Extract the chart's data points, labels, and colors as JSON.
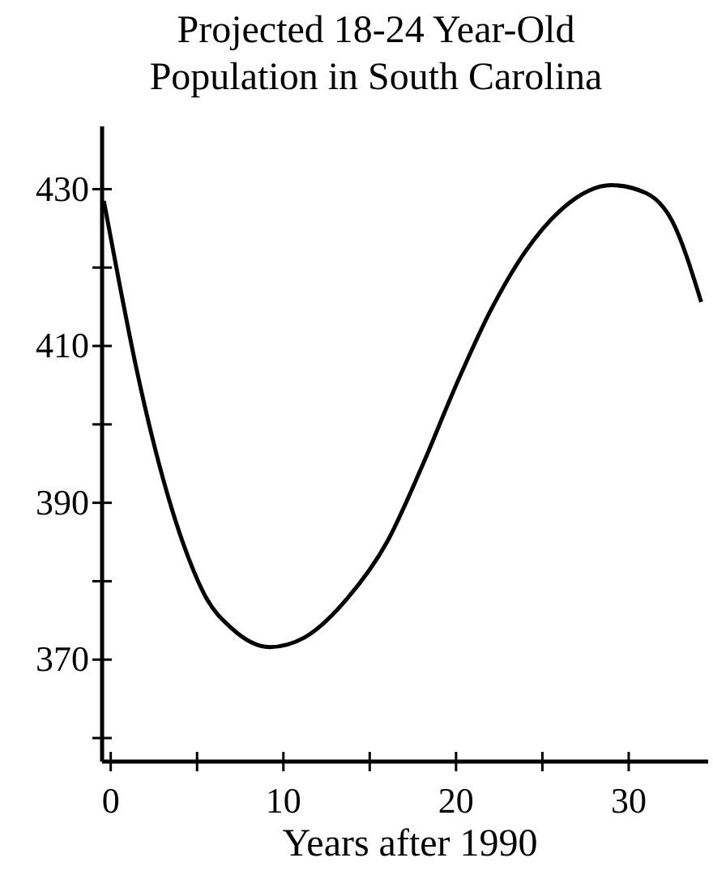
{
  "chart_data": {
    "type": "line",
    "title": "Projected 18-24 Year-Old Population in South Carolina",
    "xlabel": "Years after 1990",
    "x": [
      -0.4,
      0.5,
      1.5,
      2.5,
      3.5,
      4.5,
      5.5,
      7,
      9.2,
      11.2,
      13.7,
      16,
      18,
      20,
      22,
      24,
      26,
      29,
      31,
      32.5,
      34.2
    ],
    "series": [
      {
        "color": "#000000",
        "values": [
          428.5,
          418,
          407,
          397.5,
          389.5,
          383,
          378,
          374,
          371.6,
          372.8,
          377.8,
          385,
          394.5,
          405,
          414.5,
          422,
          427.2,
          430.5,
          429.5,
          426,
          415.6
        ]
      }
    ],
    "xlim": [
      -0.5,
      34.6
    ],
    "ylim": [
      357,
      438
    ],
    "xticks": [
      0,
      {
        "value": 5,
        "label": null
      },
      10,
      {
        "value": 15,
        "label": null
      },
      20,
      {
        "value": 25,
        "label": null
      },
      30
    ],
    "yticks": [
      {
        "value": 360,
        "label": null
      },
      370,
      {
        "value": 380,
        "label": null
      },
      390,
      {
        "value": 400,
        "label": null
      },
      410,
      {
        "value": 420,
        "label": null
      },
      430
    ],
    "grid": false,
    "marker": "none",
    "line_style": "solid"
  }
}
